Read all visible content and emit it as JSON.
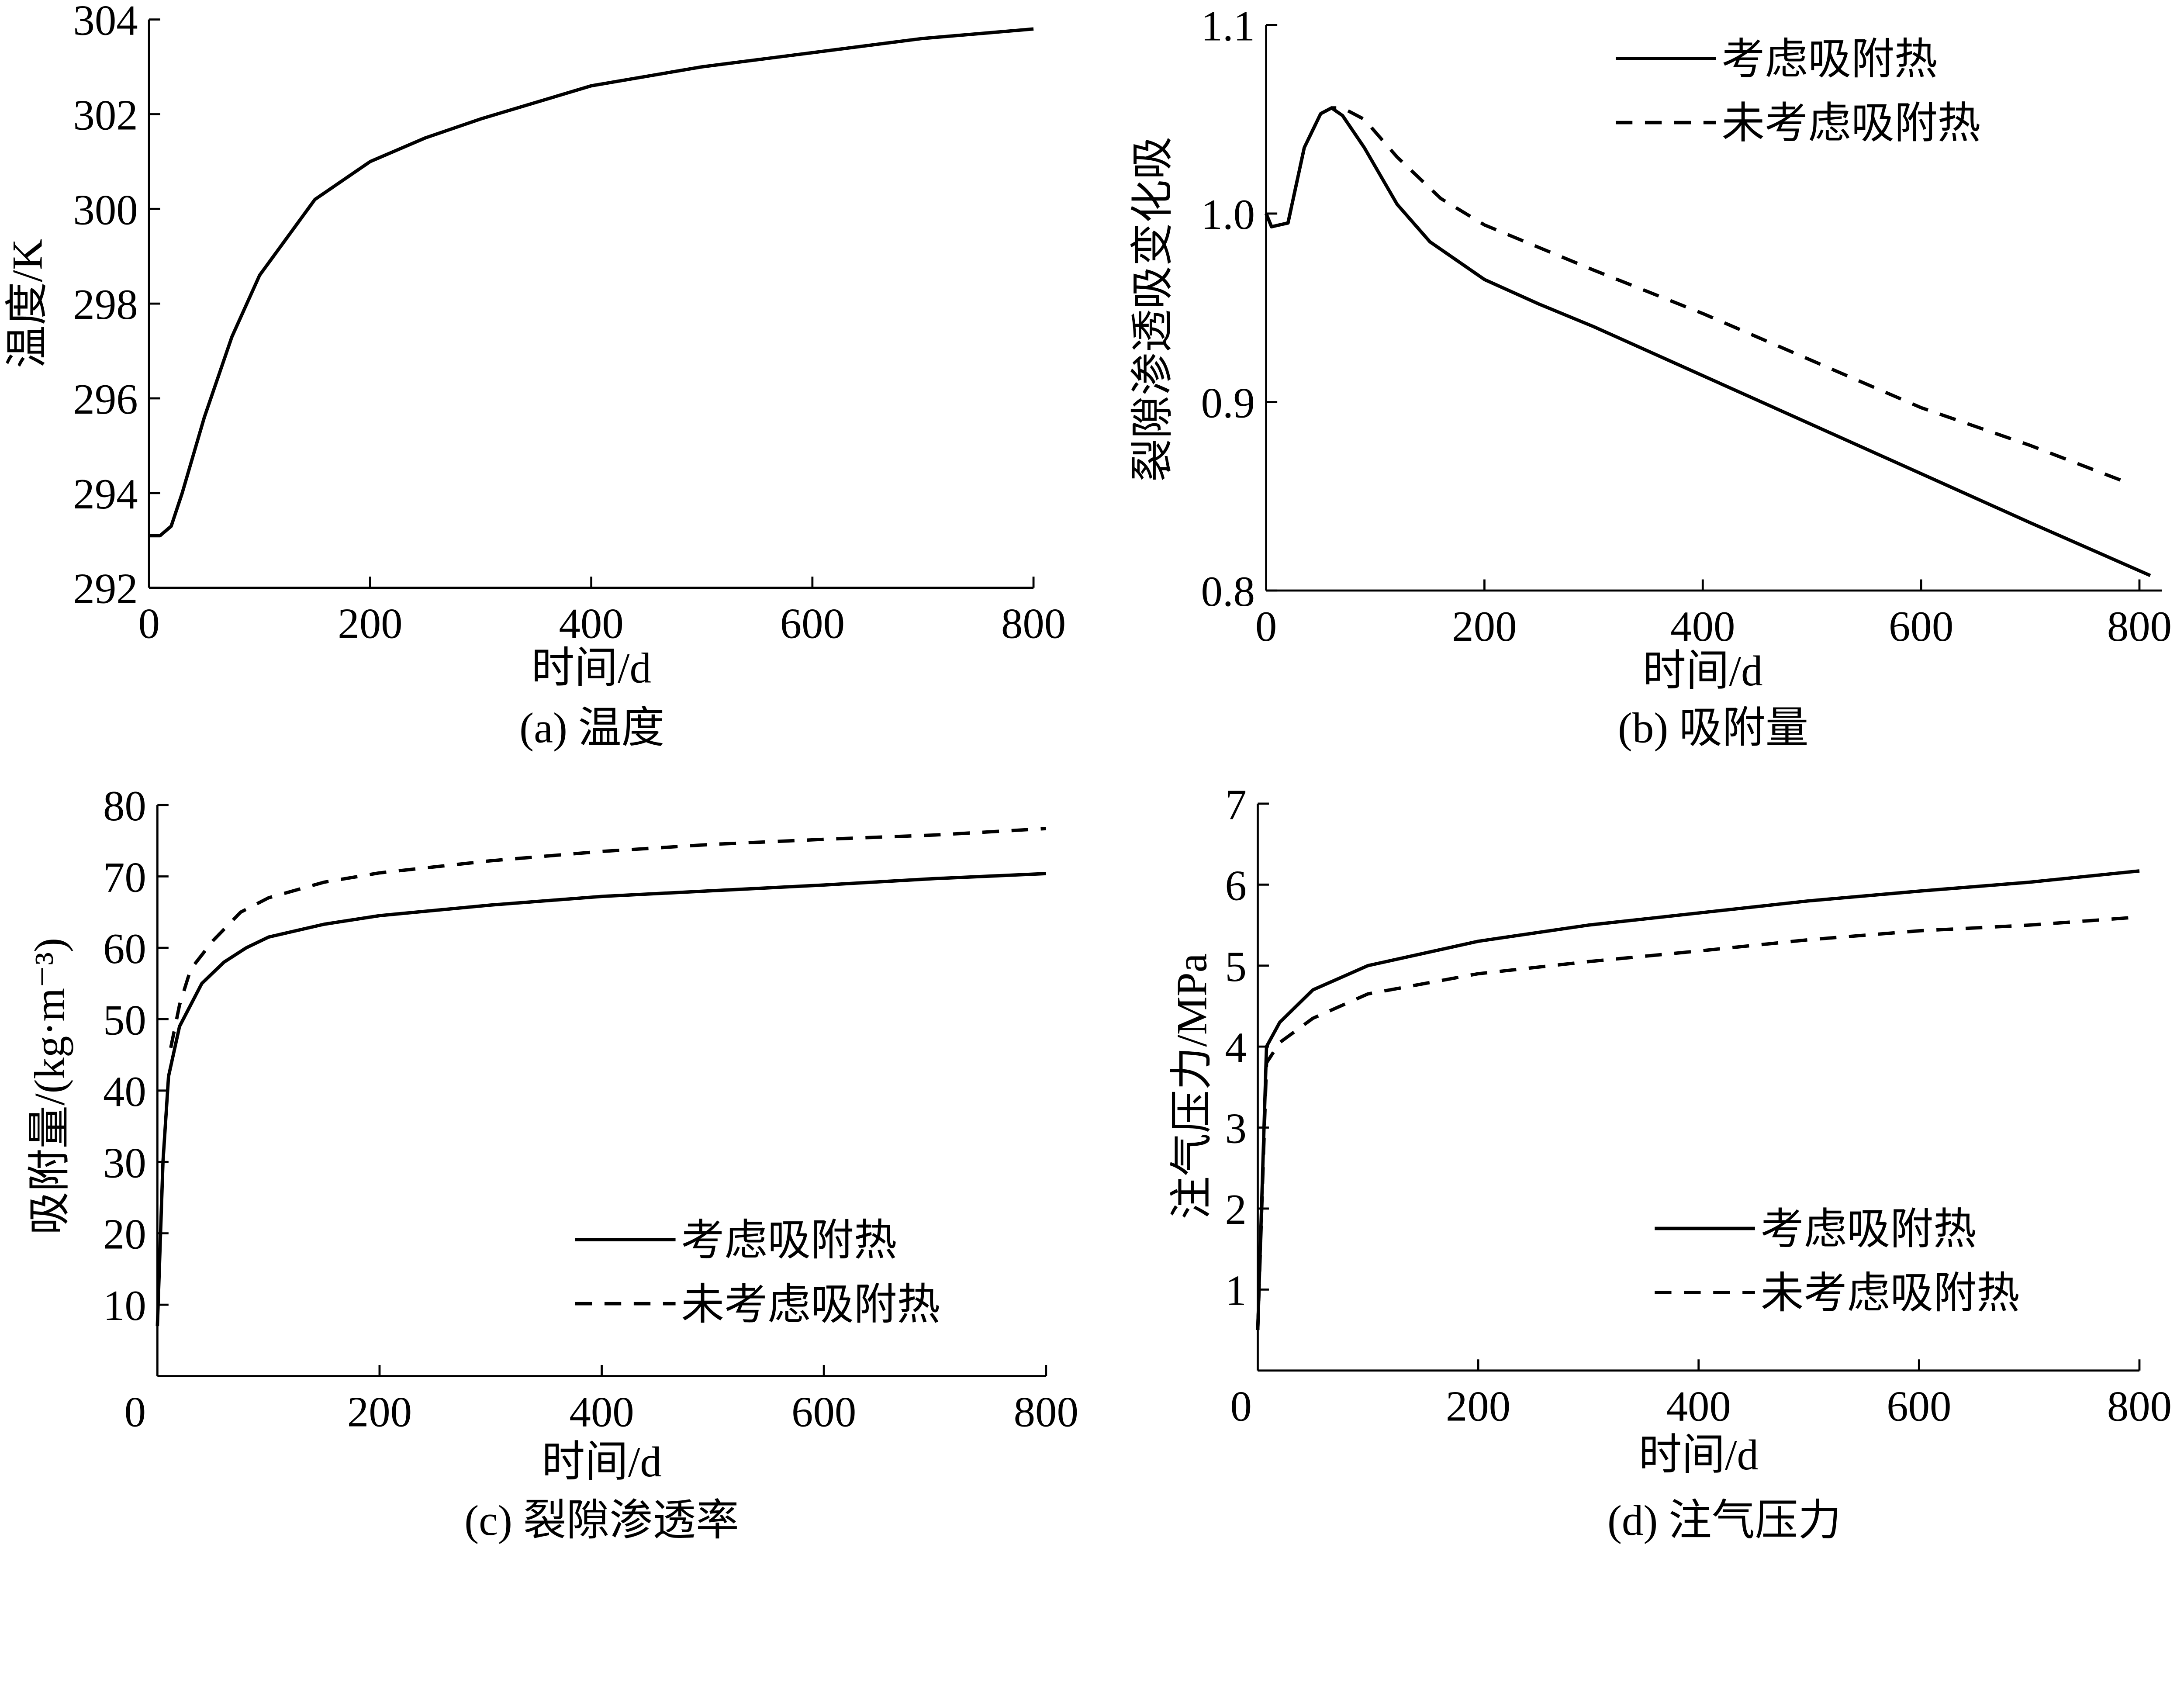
{
  "chart_data": [
    {
      "type": "line",
      "caption": "(a) 温度",
      "xlabel": "时间/d",
      "ylabel": "温度/K",
      "xlim": [
        0,
        800
      ],
      "ylim": [
        292,
        304
      ],
      "xticks": [
        "0",
        "200",
        "400",
        "600",
        "800"
      ],
      "yticks": [
        "292",
        "294",
        "296",
        "298",
        "300",
        "302",
        "304"
      ],
      "grid": false,
      "series": [
        {
          "style": "solid",
          "x": [
            0,
            10,
            20,
            30,
            50,
            75,
            100,
            150,
            200,
            250,
            300,
            400,
            500,
            600,
            700,
            800
          ],
          "y": [
            293.1,
            293.1,
            293.3,
            294.0,
            295.6,
            297.3,
            298.6,
            300.2,
            301.0,
            301.5,
            301.9,
            302.6,
            303.0,
            303.3,
            303.6,
            303.8
          ]
        }
      ]
    },
    {
      "type": "line",
      "caption": "(b) 吸附量",
      "xlabel": "时间/d",
      "ylabel": "裂隙渗透吸变化吸",
      "xlim": [
        0,
        800
      ],
      "ylim": [
        0.8,
        1.1
      ],
      "xticks": [
        "0",
        "200",
        "400",
        "600",
        "800"
      ],
      "yticks": [
        "0.8",
        "0.9",
        "1.0",
        "1.1"
      ],
      "grid": false,
      "legend_position": "top-right",
      "series": [
        {
          "name": "考虑吸附热",
          "style": "solid",
          "x": [
            0,
            5,
            20,
            35,
            50,
            60,
            70,
            90,
            120,
            150,
            200,
            250,
            300,
            400,
            500,
            600,
            700,
            810
          ],
          "y": [
            1.0,
            0.993,
            0.995,
            1.035,
            1.053,
            1.056,
            1.052,
            1.035,
            1.005,
            0.985,
            0.965,
            0.952,
            0.94,
            0.914,
            0.888,
            0.862,
            0.836,
            0.808
          ]
        },
        {
          "name": "未考虑吸附热",
          "style": "dashed",
          "x": [
            0,
            5,
            20,
            35,
            50,
            60,
            70,
            90,
            120,
            160,
            200,
            300,
            400,
            500,
            600,
            700,
            790
          ],
          "y": [
            1.0,
            0.993,
            0.995,
            1.035,
            1.053,
            1.056,
            1.056,
            1.05,
            1.03,
            1.008,
            0.994,
            0.97,
            0.947,
            0.922,
            0.897,
            0.877,
            0.857
          ]
        }
      ]
    },
    {
      "type": "line",
      "caption": "(c) 裂隙渗透率",
      "xlabel": "时间/d",
      "ylabel": "吸附量/(kg·m⁻³)",
      "xlim": [
        0,
        800
      ],
      "ylim": [
        0,
        80
      ],
      "xticks": [
        "0",
        "200",
        "400",
        "600",
        "800"
      ],
      "yticks": [
        "10",
        "20",
        "30",
        "40",
        "50",
        "60",
        "70",
        "80"
      ],
      "grid": false,
      "legend_position": "bottom-right",
      "series": [
        {
          "name": "考虑吸附热",
          "style": "solid",
          "x": [
            0,
            5,
            10,
            20,
            40,
            60,
            80,
            100,
            150,
            200,
            300,
            400,
            500,
            600,
            700,
            800
          ],
          "y": [
            7,
            30,
            42,
            49,
            55,
            58,
            60,
            61.5,
            63.3,
            64.5,
            66,
            67.2,
            68,
            68.8,
            69.7,
            70.4
          ]
        },
        {
          "name": "未考虑吸附热",
          "style": "dashed",
          "x": [
            12,
            20,
            30,
            50,
            75,
            100,
            150,
            200,
            300,
            400,
            500,
            600,
            700,
            800
          ],
          "y": [
            46,
            52,
            57,
            61,
            65,
            67,
            69.2,
            70.5,
            72.2,
            73.5,
            74.5,
            75.2,
            75.8,
            76.7
          ]
        }
      ]
    },
    {
      "type": "line",
      "caption": "(d) 注气压力",
      "xlabel": "时间/d",
      "ylabel": "注气压力/MPa",
      "xlim": [
        0,
        800
      ],
      "ylim": [
        0,
        7
      ],
      "xticks": [
        "0",
        "200",
        "400",
        "600",
        "800"
      ],
      "yticks": [
        "1",
        "2",
        "3",
        "4",
        "5",
        "6",
        "7"
      ],
      "grid": false,
      "legend_position": "bottom-right",
      "series": [
        {
          "name": "考虑吸附热",
          "style": "solid",
          "x": [
            0,
            8,
            20,
            50,
            100,
            200,
            300,
            400,
            500,
            600,
            700,
            800
          ],
          "y": [
            0.5,
            4.0,
            4.3,
            4.7,
            5.0,
            5.3,
            5.5,
            5.65,
            5.8,
            5.92,
            6.03,
            6.17
          ]
        },
        {
          "name": "未考虑吸附热",
          "style": "dashed",
          "x": [
            0,
            8,
            20,
            50,
            100,
            200,
            300,
            400,
            500,
            600,
            700,
            800
          ],
          "y": [
            0.5,
            3.8,
            4.05,
            4.35,
            4.65,
            4.9,
            5.05,
            5.18,
            5.32,
            5.43,
            5.5,
            5.6
          ]
        }
      ]
    }
  ]
}
